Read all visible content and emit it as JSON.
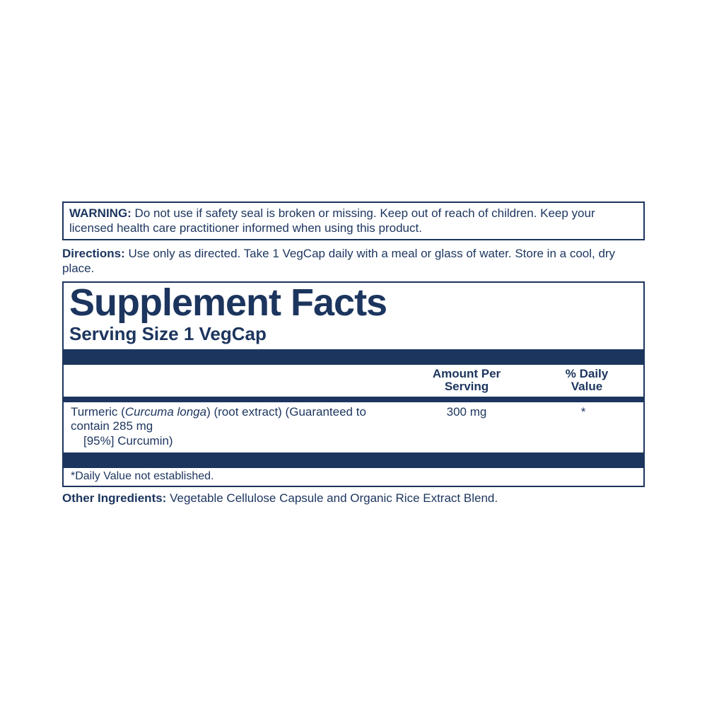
{
  "colors": {
    "text": "#1c355e",
    "background": "#ffffff",
    "bar": "#1c355e",
    "border": "#1c355e"
  },
  "typography": {
    "body_fontsize_pt": 13,
    "title_fontsize_pt": 40,
    "serving_fontsize_pt": 19,
    "title_font_family": "Arial Black"
  },
  "warning": {
    "label": "WARNING:",
    "text": " Do not use if safety seal is broken or missing. Keep out of reach of children. Keep your licensed health care practitioner informed when using this product."
  },
  "directions": {
    "label": "Directions:",
    "text": " Use only as directed. Take 1 VegCap daily with a meal or glass of water. Store in a cool, dry place."
  },
  "facts": {
    "title": "Supplement Facts",
    "serving": "Serving Size 1 VegCap",
    "headers": {
      "amount_line1": "Amount Per",
      "amount_line2": "Serving",
      "dv_line1": "% Daily",
      "dv_line2": "Value"
    },
    "rows": [
      {
        "name_pre": "Turmeric (",
        "name_sci": "Curcuma longa",
        "name_post": ") (root extract) (Guaranteed to contain 285 mg",
        "name_line2": "[95%] Curcumin)",
        "amount": "300 mg",
        "dv": "*"
      }
    ],
    "footnote": "*Daily Value not established."
  },
  "other": {
    "label": "Other Ingredients:",
    "text": " Vegetable Cellulose Capsule and Organic Rice Extract Blend."
  }
}
